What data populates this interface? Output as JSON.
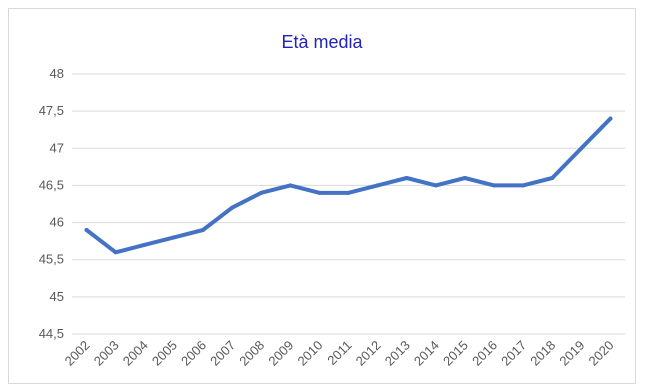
{
  "chart_data": {
    "type": "line",
    "title": "Età media",
    "xlabel": "",
    "ylabel": "",
    "x": [
      "2002",
      "2003",
      "2004",
      "2005",
      "2006",
      "2007",
      "2008",
      "2009",
      "2010",
      "2011",
      "2012",
      "2013",
      "2014",
      "2015",
      "2016",
      "2017",
      "2018",
      "2019",
      "2020"
    ],
    "series": [
      {
        "values": [
          45.9,
          45.6,
          45.7,
          45.8,
          45.9,
          46.2,
          46.4,
          46.5,
          46.4,
          46.4,
          46.5,
          46.6,
          46.5,
          46.6,
          46.5,
          46.5,
          46.6,
          47.0,
          47.4
        ],
        "color": "#4472c4"
      }
    ],
    "ylim": [
      44.5,
      48
    ],
    "yticks": [
      "44,5",
      "45",
      "45,5",
      "46",
      "46,5",
      "47",
      "47,5",
      "48"
    ],
    "grid": true,
    "legend": "none"
  }
}
